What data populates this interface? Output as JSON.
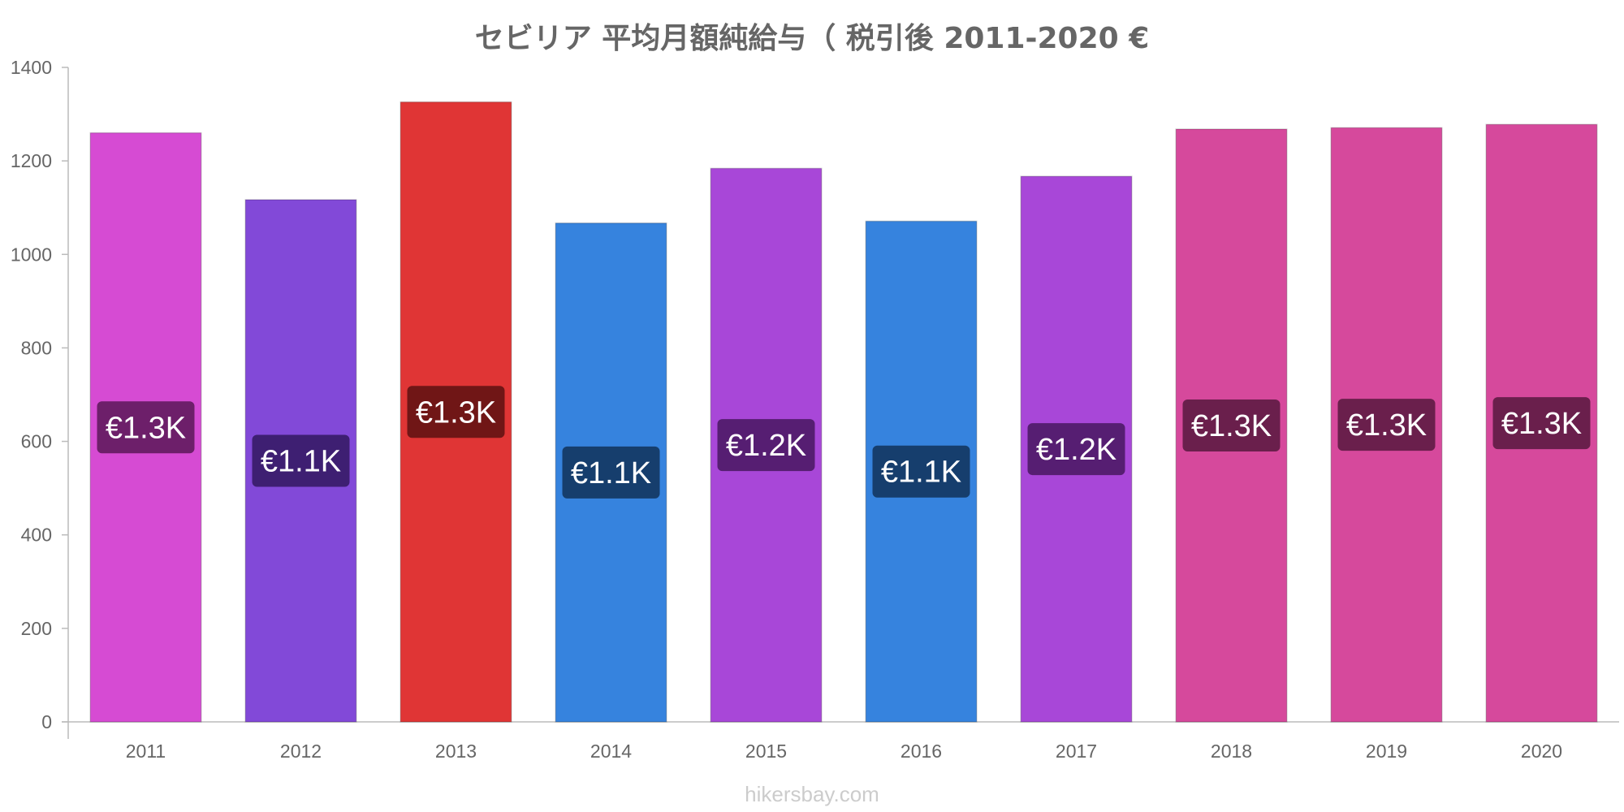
{
  "chart_data": {
    "type": "bar",
    "title": "セビリア 平均月額純給与（ 税引後 2011-2020 €",
    "xlabel": "",
    "ylabel": "",
    "ylim": [
      0,
      1400
    ],
    "yticks": [
      0,
      200,
      400,
      600,
      800,
      1000,
      1200,
      1400
    ],
    "grid": false,
    "categories": [
      "2011",
      "2012",
      "2013",
      "2014",
      "2015",
      "2016",
      "2017",
      "2018",
      "2019",
      "2020"
    ],
    "values": [
      1260,
      1117,
      1326,
      1067,
      1184,
      1071,
      1167,
      1268,
      1271,
      1278
    ],
    "data_labels": [
      "€1.3K",
      "€1.1K",
      "€1.3K",
      "€1.1K",
      "€1.2K",
      "€1.1K",
      "€1.2K",
      "€1.3K",
      "€1.3K",
      "€1.3K"
    ],
    "bar_colors": [
      "#d64bd3",
      "#8249d8",
      "#e03535",
      "#3683de",
      "#a847d8",
      "#3683de",
      "#a847d8",
      "#d6499c",
      "#d6499c",
      "#d6499c"
    ],
    "label_colors": [
      "#6d1f6a",
      "#3e1f72",
      "#701616",
      "#163e6d",
      "#561e72",
      "#163e6d",
      "#561e72",
      "#6a1f4c",
      "#6a1f4c",
      "#6a1f4c"
    ]
  },
  "watermark": "hikersbay.com"
}
